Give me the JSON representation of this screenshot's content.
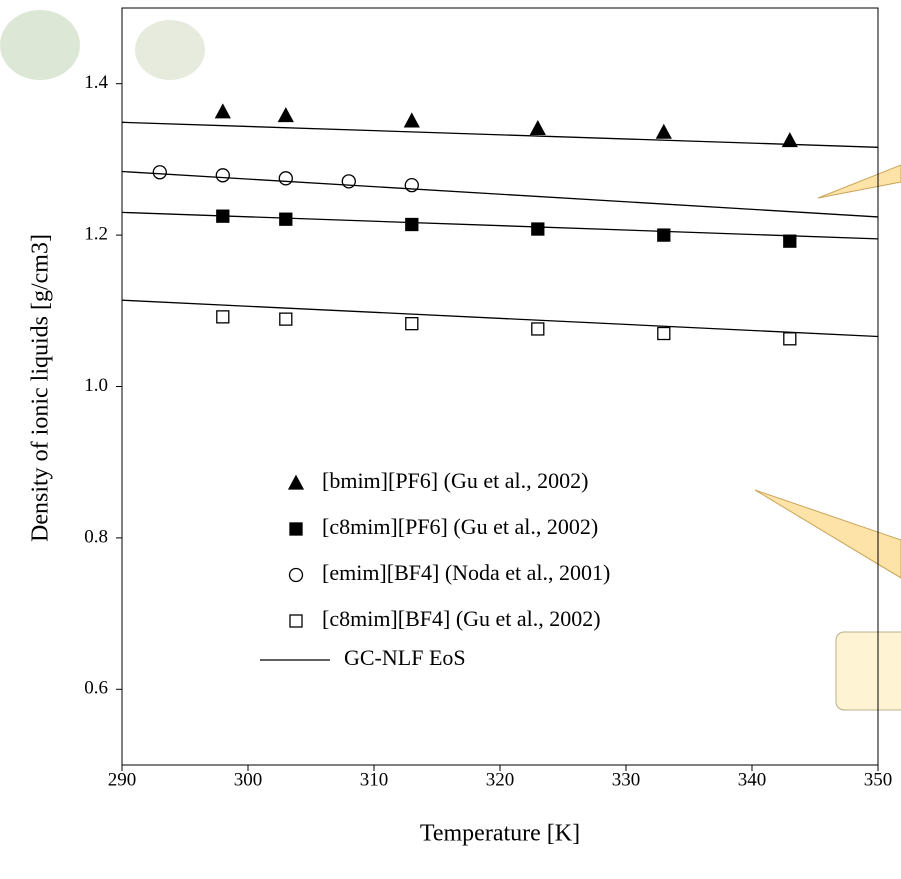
{
  "chart_data": {
    "type": "scatter",
    "x_label": "Temperature [K]",
    "y_label": "Density of ionic liquids [g/cm3]",
    "xlim": [
      290,
      350
    ],
    "xticks": [
      290,
      300,
      310,
      320,
      330,
      340,
      350
    ],
    "ylim": [
      0.5,
      1.5
    ],
    "yticks": [
      0.6,
      0.8,
      {
        "value": 1,
        "label": "1.0"
      },
      1.2,
      1.4
    ],
    "series": [
      {
        "name": "[bmim][PF6] (Gu et al., 2002)",
        "marker": "triangle",
        "filled": true,
        "color": "#000000",
        "x": [
          298,
          303,
          313,
          323,
          333,
          343
        ],
        "values": [
          1.363,
          1.358,
          1.351,
          1.341,
          1.336,
          1.325
        ]
      },
      {
        "name": "[c8mim][PF6] (Gu et al., 2002)",
        "marker": "square",
        "filled": true,
        "color": "#000000",
        "x": [
          298,
          303,
          313,
          323,
          333,
          343
        ],
        "values": [
          1.225,
          1.221,
          1.214,
          1.208,
          1.2,
          1.192
        ]
      },
      {
        "name": "[emim][BF4] (Noda et al., 2001)",
        "marker": "circle",
        "filled": false,
        "color": "#000000",
        "x": [
          293,
          298,
          303,
          308,
          313
        ],
        "values": [
          1.283,
          1.279,
          1.275,
          1.271,
          1.266
        ]
      },
      {
        "name": "[c8mim][BF4] (Gu et al., 2002)",
        "marker": "square",
        "filled": false,
        "color": "#000000",
        "x": [
          298,
          303,
          313,
          323,
          333,
          343
        ],
        "values": [
          1.092,
          1.089,
          1.083,
          1.076,
          1.07,
          1.063
        ]
      }
    ],
    "fit": {
      "name": "GC-NLF EoS",
      "color": "#000000",
      "x": [
        290,
        350
      ],
      "lines": [
        [
          1.349,
          1.316
        ],
        [
          1.23,
          1.195
        ],
        [
          1.284,
          1.224
        ],
        [
          1.114,
          1.066
        ]
      ]
    }
  }
}
